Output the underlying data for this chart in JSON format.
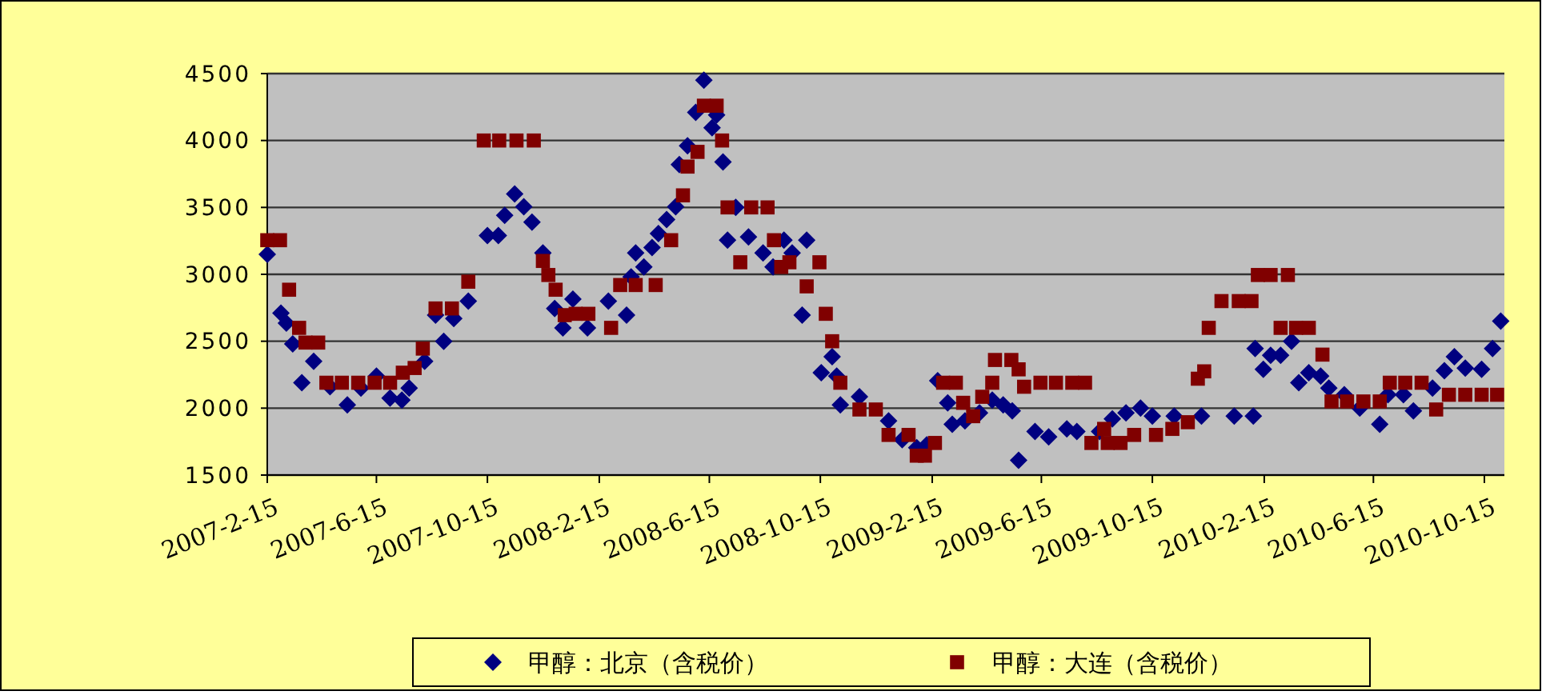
{
  "chart_data": {
    "type": "scatter",
    "xlim": [
      "2007-02-15",
      "2010-11-06"
    ],
    "xticks": [
      {
        "value": "2007-02-15",
        "label": "2007-2-15"
      },
      {
        "value": "2007-06-15",
        "label": "2007-6-15"
      },
      {
        "value": "2007-10-15",
        "label": "2007-10-15"
      },
      {
        "value": "2008-02-15",
        "label": "2008-2-15"
      },
      {
        "value": "2008-06-15",
        "label": "2008-6-15"
      },
      {
        "value": "2008-10-15",
        "label": "2008-10-15"
      },
      {
        "value": "2009-02-15",
        "label": "2009-2-15"
      },
      {
        "value": "2009-06-15",
        "label": "2009-6-15"
      },
      {
        "value": "2009-10-15",
        "label": "2009-10-15"
      },
      {
        "value": "2010-02-15",
        "label": "2010-2-15"
      },
      {
        "value": "2010-06-15",
        "label": "2010-6-15"
      },
      {
        "value": "2010-10-15",
        "label": "2010-10-15"
      }
    ],
    "ylim": [
      1500,
      4500
    ],
    "yticks": [
      1500,
      2000,
      2500,
      3000,
      3500,
      4000,
      4500
    ],
    "grid": "y",
    "legend": "bottom",
    "series": [
      {
        "name": "甲醇：北京（含税价）",
        "color": "#000080",
        "marker": "diamond",
        "x": [
          "2007-02-15",
          "2007-03-02",
          "2007-03-08",
          "2007-03-15",
          "2007-03-25",
          "2007-04-07",
          "2007-04-25",
          "2007-05-14",
          "2007-05-29",
          "2007-06-15",
          "2007-06-30",
          "2007-07-13",
          "2007-07-21",
          "2007-08-07",
          "2007-08-19",
          "2007-08-28",
          "2007-09-08",
          "2007-09-24",
          "2007-10-15",
          "2007-10-27",
          "2007-11-03",
          "2007-11-14",
          "2007-11-24",
          "2007-12-03",
          "2007-12-15",
          "2007-12-28",
          "2008-01-06",
          "2008-01-17",
          "2008-02-02",
          "2008-02-25",
          "2008-03-16",
          "2008-03-21",
          "2008-03-26",
          "2008-04-04",
          "2008-04-13",
          "2008-04-20",
          "2008-04-29",
          "2008-05-09",
          "2008-05-13",
          "2008-05-22",
          "2008-05-31",
          "2008-06-09",
          "2008-06-18",
          "2008-06-23",
          "2008-06-30",
          "2008-07-05",
          "2008-07-14",
          "2008-07-28",
          "2008-08-13",
          "2008-08-24",
          "2008-09-05",
          "2008-09-14",
          "2008-09-25",
          "2008-09-30",
          "2008-10-16",
          "2008-10-28",
          "2008-11-02",
          "2008-11-06",
          "2008-11-27",
          "2008-12-29",
          "2009-01-13",
          "2009-01-29",
          "2009-02-09",
          "2009-02-21",
          "2009-03-04",
          "2009-03-09",
          "2009-03-23",
          "2009-04-08",
          "2009-04-22",
          "2009-05-04",
          "2009-05-14",
          "2009-05-21",
          "2009-06-08",
          "2009-06-23",
          "2009-07-13",
          "2009-07-24",
          "2009-08-18",
          "2009-09-01",
          "2009-09-16",
          "2009-10-02",
          "2009-10-15",
          "2009-11-08",
          "2009-12-08",
          "2010-01-13",
          "2010-02-03",
          "2010-02-05",
          "2010-02-14",
          "2010-02-22",
          "2010-03-05",
          "2010-03-17",
          "2010-03-25",
          "2010-04-05",
          "2010-04-18",
          "2010-04-27",
          "2010-05-14",
          "2010-05-31",
          "2010-06-22",
          "2010-07-01",
          "2010-07-18",
          "2010-07-29",
          "2010-08-19",
          "2010-09-01",
          "2010-09-12",
          "2010-09-24",
          "2010-10-12",
          "2010-10-24",
          "2010-11-02"
        ],
        "values": [
          3150,
          2710,
          2635,
          2480,
          2190,
          2350,
          2160,
          2025,
          2150,
          2240,
          2075,
          2060,
          2150,
          2350,
          2695,
          2500,
          2670,
          2800,
          3290,
          3290,
          3440,
          3600,
          3505,
          3390,
          3160,
          2745,
          2600,
          2815,
          2600,
          2800,
          2695,
          2980,
          3160,
          3055,
          3200,
          3305,
          3410,
          3505,
          3820,
          3960,
          4210,
          4450,
          4095,
          4190,
          3840,
          3255,
          3500,
          3280,
          3160,
          3055,
          3255,
          3160,
          2695,
          3255,
          2265,
          2385,
          2240,
          2025,
          2085,
          1905,
          1765,
          1705,
          1725,
          2205,
          2040,
          1880,
          1905,
          1965,
          2060,
          2025,
          1980,
          1610,
          1825,
          1785,
          1845,
          1825,
          1825,
          1920,
          1965,
          2000,
          1940,
          1940,
          1940,
          1940,
          1940,
          2445,
          2290,
          2395,
          2395,
          2500,
          2190,
          2265,
          2240,
          2150,
          2100,
          2000,
          1880,
          2100,
          2100,
          1980,
          2150,
          2280,
          2385,
          2300,
          2290,
          2445,
          2650
        ]
      },
      {
        "name": "甲醇：大连（含税价）",
        "color": "#800000",
        "marker": "square",
        "x": [
          "2007-02-15",
          "2007-03-01",
          "2007-03-11",
          "2007-03-22",
          "2007-03-29",
          "2007-04-12",
          "2007-04-21",
          "2007-05-08",
          "2007-05-26",
          "2007-06-13",
          "2007-06-30",
          "2007-07-14",
          "2007-07-27",
          "2007-08-05",
          "2007-08-19",
          "2007-09-06",
          "2007-09-24",
          "2007-10-11",
          "2007-10-28",
          "2007-11-16",
          "2007-12-05",
          "2007-12-15",
          "2007-12-21",
          "2007-12-29",
          "2008-01-08",
          "2008-01-20",
          "2008-02-03",
          "2008-02-28",
          "2008-03-09",
          "2008-03-26",
          "2008-04-17",
          "2008-05-04",
          "2008-05-17",
          "2008-05-22",
          "2008-06-02",
          "2008-06-09",
          "2008-06-23",
          "2008-06-29",
          "2008-07-05",
          "2008-07-19",
          "2008-07-31",
          "2008-08-18",
          "2008-08-25",
          "2008-09-02",
          "2008-09-11",
          "2008-09-30",
          "2008-10-14",
          "2008-10-21",
          "2008-10-28",
          "2008-11-06",
          "2008-11-27",
          "2008-12-15",
          "2008-12-29",
          "2009-01-20",
          "2009-01-29",
          "2009-02-07",
          "2009-02-18",
          "2009-02-27",
          "2009-03-13",
          "2009-03-21",
          "2009-04-01",
          "2009-04-11",
          "2009-04-22",
          "2009-04-25",
          "2009-05-13",
          "2009-05-21",
          "2009-05-27",
          "2009-06-14",
          "2009-07-01",
          "2009-07-19",
          "2009-08-02",
          "2009-08-09",
          "2009-08-23",
          "2009-08-27",
          "2009-09-10",
          "2009-09-25",
          "2009-10-19",
          "2009-11-06",
          "2009-11-23",
          "2009-12-04",
          "2009-12-11",
          "2009-12-16",
          "2009-12-30",
          "2010-01-18",
          "2010-02-01",
          "2010-02-08",
          "2010-02-22",
          "2010-03-05",
          "2010-03-13",
          "2010-03-22",
          "2010-04-05",
          "2010-04-20",
          "2010-04-30",
          "2010-05-17",
          "2010-06-04",
          "2010-06-22",
          "2010-07-03",
          "2010-07-20",
          "2010-08-07",
          "2010-08-23",
          "2010-09-06",
          "2010-09-24",
          "2010-10-12",
          "2010-10-29"
        ],
        "values": [
          3255,
          3255,
          2885,
          2600,
          2490,
          2490,
          2190,
          2190,
          2190,
          2190,
          2190,
          2265,
          2300,
          2445,
          2745,
          2745,
          2945,
          4000,
          4000,
          4000,
          4000,
          3100,
          2995,
          2885,
          2695,
          2705,
          2705,
          2600,
          2920,
          2920,
          2920,
          3255,
          3590,
          3805,
          3915,
          4260,
          4260,
          4000,
          3500,
          3090,
          3500,
          3500,
          3255,
          3055,
          3090,
          2910,
          3090,
          2705,
          2500,
          2190,
          1990,
          1990,
          1800,
          1800,
          1645,
          1645,
          1740,
          2190,
          2190,
          2040,
          1940,
          2085,
          2190,
          2360,
          2360,
          2290,
          2160,
          2190,
          2190,
          2190,
          2190,
          1740,
          1845,
          1740,
          1740,
          1800,
          1800,
          1845,
          1895,
          2220,
          2275,
          2600,
          2800,
          2800,
          2800,
          2995,
          2995,
          2600,
          2995,
          2600,
          2600,
          2400,
          2050,
          2050,
          2050,
          2050,
          2190,
          2190,
          2190,
          1990,
          2100,
          2100,
          2100,
          2100
        ]
      }
    ]
  }
}
